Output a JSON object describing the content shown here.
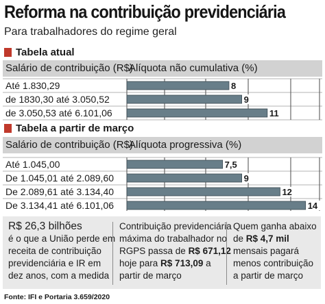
{
  "title": "Reforma na contribuição previdenciária",
  "subtitle": "Para trabalhadores do regime geral",
  "colors": {
    "bar": "#687e89",
    "accent": "#c0392b",
    "header_bg": "#d2d2d2",
    "box_bg": "#e9e9e9"
  },
  "chart_data": [
    {
      "type": "bar",
      "section_title": "Tabela atual",
      "column_headers": [
        "Salário de contribuição (R$)",
        "Alíquota não cumulativa (%)"
      ],
      "categories": [
        "Até 1.830,29",
        "de 1830,30 até 3.050,52",
        "de 3.050,53 até 6.101,06"
      ],
      "values": [
        8,
        9,
        11
      ],
      "value_labels": [
        "8",
        "9",
        "11"
      ],
      "xlim": [
        0,
        14.5
      ]
    },
    {
      "type": "bar",
      "section_title": "Tabela a partir de março",
      "column_headers": [
        "Salário de contribuição (R$)",
        "Alíquota progressiva (%)"
      ],
      "categories": [
        "Até 1.045,00",
        "De 1.045,01 até 2.089,60",
        "De 2.089,61 até 3.134,40",
        "De 3.134,41 até 6.101,06"
      ],
      "values": [
        7.5,
        9,
        12,
        14
      ],
      "value_labels": [
        "7,5",
        "9",
        "12",
        "14"
      ],
      "xlim": [
        0,
        14.5
      ]
    }
  ],
  "info": {
    "col1": {
      "highlight": "R$ 26,3 bilhões",
      "l1": "é o que a União perde em",
      "l2": "receita de contribuição",
      "l3": "previdenciária e IR em",
      "l4": "dez anos, com a medida"
    },
    "col2": {
      "l1": "Contribuição previdenciária",
      "l2": "máxima do trabalhador no",
      "l3_pre": "RGPS passa de ",
      "l3_bold": "R$ 671,12",
      "l4_pre": "hoje para ",
      "l4_bold": "R$ 713,09",
      "l4_post": " a",
      "l5": "partir de março"
    },
    "col3": {
      "l1": "Quem ganha abaixo",
      "l2_pre": "de ",
      "l2_bold": "R$ 4,7 mil",
      "l3": "mensais pagará",
      "l4": "menos contribuição",
      "l5": "a partir de março"
    }
  },
  "source": "Fonte: IFI e Portaria 3.659/2020"
}
